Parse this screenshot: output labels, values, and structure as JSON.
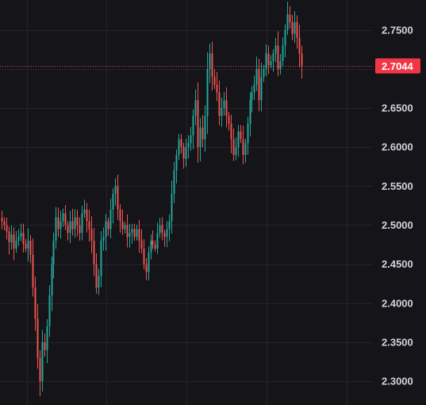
{
  "colors": {
    "background": "#141419",
    "grid": "#24252c",
    "up": "#26a69a",
    "down": "#ef5350",
    "axis_text": "#d1d4dc",
    "last_price_line": "#ef5350",
    "last_price_tag": "#f23645",
    "last_price_text": "#ffffff"
  },
  "chart_data": {
    "type": "candlestick",
    "y_axis": {
      "position": "right",
      "range": [
        2.2695,
        2.7885
      ],
      "ticks": [
        {
          "value": 2.75,
          "label": "2.7500"
        },
        {
          "value": 2.7,
          "label": "2.7000"
        },
        {
          "value": 2.65,
          "label": "2.6500"
        },
        {
          "value": 2.6,
          "label": "2.6000"
        },
        {
          "value": 2.55,
          "label": "2.5500"
        },
        {
          "value": 2.5,
          "label": "2.5000"
        },
        {
          "value": 2.45,
          "label": "2.4500"
        },
        {
          "value": 2.4,
          "label": "2.4000"
        },
        {
          "value": 2.35,
          "label": "2.3500"
        },
        {
          "value": 2.3,
          "label": "2.3000"
        }
      ]
    },
    "grid": true,
    "last_price": {
      "value": 2.7044,
      "label": "2.7044"
    },
    "close_series": [
      2.505,
      2.5,
      2.492,
      2.478,
      2.488,
      2.47,
      2.48,
      2.485,
      2.49,
      2.476,
      2.47,
      2.48,
      2.462,
      2.42,
      2.38,
      2.33,
      2.3,
      2.35,
      2.34,
      2.37,
      2.41,
      2.45,
      2.48,
      2.51,
      2.495,
      2.505,
      2.515,
      2.5,
      2.49,
      2.505,
      2.495,
      2.51,
      2.5,
      2.49,
      2.515,
      2.52,
      2.505,
      2.495,
      2.48,
      2.45,
      2.42,
      2.435,
      2.48,
      2.485,
      2.505,
      2.495,
      2.52,
      2.54,
      2.55,
      2.52,
      2.505,
      2.495,
      2.5,
      2.485,
      2.49,
      2.495,
      2.485,
      2.495,
      2.48,
      2.47,
      2.45,
      2.44,
      2.465,
      2.48,
      2.475,
      2.47,
      2.49,
      2.5,
      2.49,
      2.485,
      2.495,
      2.505,
      2.54,
      2.57,
      2.59,
      2.61,
      2.6,
      2.585,
      2.6,
      2.605,
      2.615,
      2.64,
      2.66,
      2.6,
      2.625,
      2.61,
      2.64,
      2.7,
      2.72,
      2.69,
      2.68,
      2.67,
      2.64,
      2.65,
      2.66,
      2.64,
      2.63,
      2.61,
      2.59,
      2.6,
      2.62,
      2.61,
      2.59,
      2.605,
      2.63,
      2.66,
      2.67,
      2.68,
      2.7,
      2.66,
      2.69,
      2.7,
      2.72,
      2.705,
      2.71,
      2.72,
      2.73,
      2.7,
      2.71,
      2.73,
      2.75,
      2.77,
      2.76,
      2.745,
      2.76,
      2.74,
      2.72,
      2.7044
    ]
  }
}
